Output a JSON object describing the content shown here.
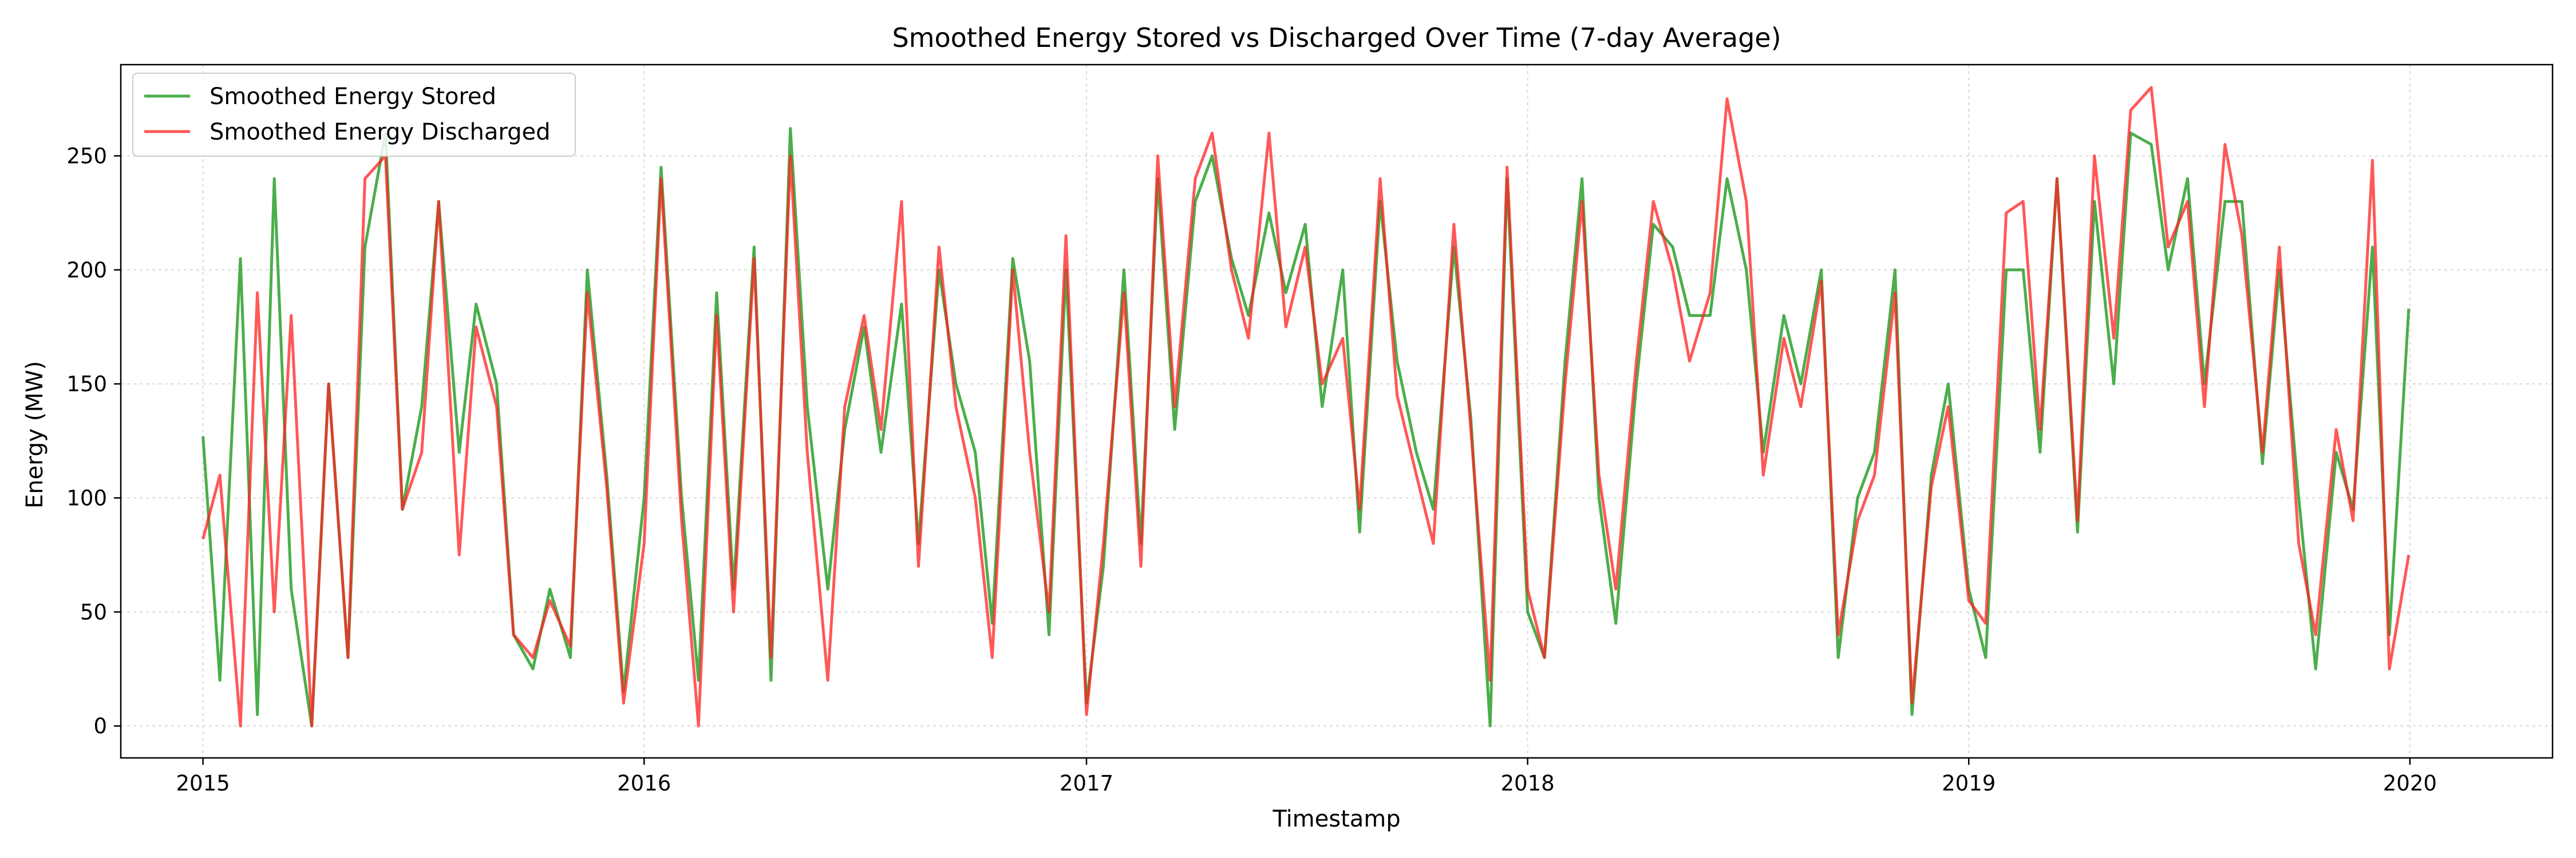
{
  "chart_data": {
    "type": "line",
    "title": "Smoothed Energy Stored vs Discharged Over Time (7-day Average)",
    "xlabel": "Timestamp",
    "ylabel": "Energy (MW)",
    "xlim": [
      "2014-10-25",
      "2020-04-28"
    ],
    "ylim": [
      -14,
      290
    ],
    "x_ticks": [
      "2015",
      "2016",
      "2017",
      "2018",
      "2019",
      "2020"
    ],
    "y_ticks": [
      "0",
      "50",
      "100",
      "150",
      "200",
      "250"
    ],
    "grid": true,
    "legend_position": "upper left",
    "x_start": "2015-01-01",
    "x_end": "2019-12-31",
    "series": [
      {
        "name": "Smoothed Energy Stored",
        "color": "#2ca02c",
        "x": [
          "2015-01-01",
          "2015-01-15",
          "2015-02-01",
          "2015-02-15",
          "2015-03-01",
          "2015-03-15",
          "2015-04-01",
          "2015-04-15",
          "2015-05-01",
          "2015-05-15",
          "2015-06-01",
          "2015-06-15",
          "2015-07-01",
          "2015-07-15",
          "2015-08-01",
          "2015-08-15",
          "2015-09-01",
          "2015-09-15",
          "2015-10-01",
          "2015-10-15",
          "2015-11-01",
          "2015-11-15",
          "2015-12-01",
          "2015-12-15",
          "2016-01-01",
          "2016-01-15",
          "2016-02-01",
          "2016-02-15",
          "2016-03-01",
          "2016-03-15",
          "2016-04-01",
          "2016-04-15",
          "2016-05-01",
          "2016-05-15",
          "2016-06-01",
          "2016-06-15",
          "2016-07-01",
          "2016-07-15",
          "2016-08-01",
          "2016-08-15",
          "2016-09-01",
          "2016-09-15",
          "2016-10-01",
          "2016-10-15",
          "2016-11-01",
          "2016-11-15",
          "2016-12-01",
          "2016-12-15",
          "2017-01-01",
          "2017-01-15",
          "2017-02-01",
          "2017-02-15",
          "2017-03-01",
          "2017-03-15",
          "2017-04-01",
          "2017-04-15",
          "2017-05-01",
          "2017-05-15",
          "2017-06-01",
          "2017-06-15",
          "2017-07-01",
          "2017-07-15",
          "2017-08-01",
          "2017-08-15",
          "2017-09-01",
          "2017-09-15",
          "2017-10-01",
          "2017-10-15",
          "2017-11-01",
          "2017-11-15",
          "2017-12-01",
          "2017-12-15",
          "2018-01-01",
          "2018-01-15",
          "2018-02-01",
          "2018-02-15",
          "2018-03-01",
          "2018-03-15",
          "2018-04-01",
          "2018-04-15",
          "2018-05-01",
          "2018-05-15",
          "2018-06-01",
          "2018-06-15",
          "2018-07-01",
          "2018-07-15",
          "2018-08-01",
          "2018-08-15",
          "2018-09-01",
          "2018-09-15",
          "2018-10-01",
          "2018-10-15",
          "2018-11-01",
          "2018-11-15",
          "2018-12-01",
          "2018-12-15",
          "2019-01-01",
          "2019-01-15",
          "2019-02-01",
          "2019-02-15",
          "2019-03-01",
          "2019-03-15",
          "2019-04-01",
          "2019-04-15",
          "2019-05-01",
          "2019-05-15",
          "2019-06-01",
          "2019-06-15",
          "2019-07-01",
          "2019-07-15",
          "2019-08-01",
          "2019-08-15",
          "2019-09-01",
          "2019-09-15",
          "2019-10-01",
          "2019-10-15",
          "2019-11-01",
          "2019-11-15",
          "2019-12-01",
          "2019-12-15",
          "2019-12-31"
        ],
        "values": [
          127,
          20,
          205,
          5,
          240,
          60,
          0,
          150,
          30,
          210,
          260,
          95,
          140,
          230,
          120,
          185,
          150,
          40,
          25,
          60,
          30,
          200,
          110,
          15,
          100,
          245,
          100,
          20,
          190,
          60,
          210,
          20,
          262,
          140,
          60,
          130,
          175,
          120,
          185,
          80,
          200,
          150,
          120,
          45,
          205,
          160,
          40,
          200,
          10,
          70,
          200,
          80,
          240,
          130,
          230,
          250,
          205,
          180,
          225,
          190,
          220,
          140,
          200,
          85,
          230,
          160,
          120,
          95,
          210,
          135,
          0,
          240,
          50,
          30,
          160,
          240,
          100,
          45,
          150,
          220,
          210,
          180,
          180,
          240,
          200,
          120,
          180,
          150,
          200,
          30,
          100,
          120,
          200,
          5,
          110,
          150,
          60,
          30,
          200,
          200,
          120,
          240,
          85,
          230,
          150,
          260,
          255,
          200,
          240,
          150,
          230,
          230,
          115,
          200,
          100,
          25,
          120,
          95,
          210,
          40,
          183
        ]
      },
      {
        "name": "Smoothed Energy Discharged",
        "color": "#ff2020",
        "x": [
          "2015-01-01",
          "2015-01-15",
          "2015-02-01",
          "2015-02-15",
          "2015-03-01",
          "2015-03-15",
          "2015-04-01",
          "2015-04-15",
          "2015-05-01",
          "2015-05-15",
          "2015-06-01",
          "2015-06-15",
          "2015-07-01",
          "2015-07-15",
          "2015-08-01",
          "2015-08-15",
          "2015-09-01",
          "2015-09-15",
          "2015-10-01",
          "2015-10-15",
          "2015-11-01",
          "2015-11-15",
          "2015-12-01",
          "2015-12-15",
          "2016-01-01",
          "2016-01-15",
          "2016-02-01",
          "2016-02-15",
          "2016-03-01",
          "2016-03-15",
          "2016-04-01",
          "2016-04-15",
          "2016-05-01",
          "2016-05-15",
          "2016-06-01",
          "2016-06-15",
          "2016-07-01",
          "2016-07-15",
          "2016-08-01",
          "2016-08-15",
          "2016-09-01",
          "2016-09-15",
          "2016-10-01",
          "2016-10-15",
          "2016-11-01",
          "2016-11-15",
          "2016-12-01",
          "2016-12-15",
          "2017-01-01",
          "2017-01-15",
          "2017-02-01",
          "2017-02-15",
          "2017-03-01",
          "2017-03-15",
          "2017-04-01",
          "2017-04-15",
          "2017-05-01",
          "2017-05-15",
          "2017-06-01",
          "2017-06-15",
          "2017-07-01",
          "2017-07-15",
          "2017-08-01",
          "2017-08-15",
          "2017-09-01",
          "2017-09-15",
          "2017-10-01",
          "2017-10-15",
          "2017-11-01",
          "2017-11-15",
          "2017-12-01",
          "2017-12-15",
          "2018-01-01",
          "2018-01-15",
          "2018-02-01",
          "2018-02-15",
          "2018-03-01",
          "2018-03-15",
          "2018-04-01",
          "2018-04-15",
          "2018-05-01",
          "2018-05-15",
          "2018-06-01",
          "2018-06-15",
          "2018-07-01",
          "2018-07-15",
          "2018-08-01",
          "2018-08-15",
          "2018-09-01",
          "2018-09-15",
          "2018-10-01",
          "2018-10-15",
          "2018-11-01",
          "2018-11-15",
          "2018-12-01",
          "2018-12-15",
          "2019-01-01",
          "2019-01-15",
          "2019-02-01",
          "2019-02-15",
          "2019-03-01",
          "2019-03-15",
          "2019-04-01",
          "2019-04-15",
          "2019-05-01",
          "2019-05-15",
          "2019-06-01",
          "2019-06-15",
          "2019-07-01",
          "2019-07-15",
          "2019-08-01",
          "2019-08-15",
          "2019-09-01",
          "2019-09-15",
          "2019-10-01",
          "2019-10-15",
          "2019-11-01",
          "2019-11-15",
          "2019-12-01",
          "2019-12-15",
          "2019-12-31"
        ],
        "values": [
          82,
          110,
          0,
          190,
          50,
          180,
          0,
          150,
          30,
          240,
          250,
          95,
          120,
          230,
          75,
          175,
          140,
          40,
          30,
          55,
          35,
          190,
          105,
          10,
          80,
          240,
          90,
          0,
          180,
          50,
          205,
          30,
          250,
          120,
          20,
          140,
          180,
          130,
          230,
          70,
          210,
          140,
          100,
          30,
          200,
          120,
          50,
          215,
          5,
          80,
          190,
          70,
          250,
          140,
          240,
          260,
          200,
          170,
          260,
          175,
          210,
          150,
          170,
          95,
          240,
          145,
          110,
          80,
          220,
          130,
          20,
          245,
          60,
          30,
          150,
          230,
          110,
          60,
          160,
          230,
          200,
          160,
          190,
          275,
          230,
          110,
          170,
          140,
          195,
          40,
          90,
          110,
          190,
          10,
          105,
          140,
          55,
          45,
          225,
          230,
          130,
          240,
          90,
          250,
          170,
          270,
          280,
          210,
          230,
          140,
          255,
          215,
          120,
          210,
          80,
          40,
          130,
          90,
          248,
          25,
          75
        ]
      }
    ]
  }
}
